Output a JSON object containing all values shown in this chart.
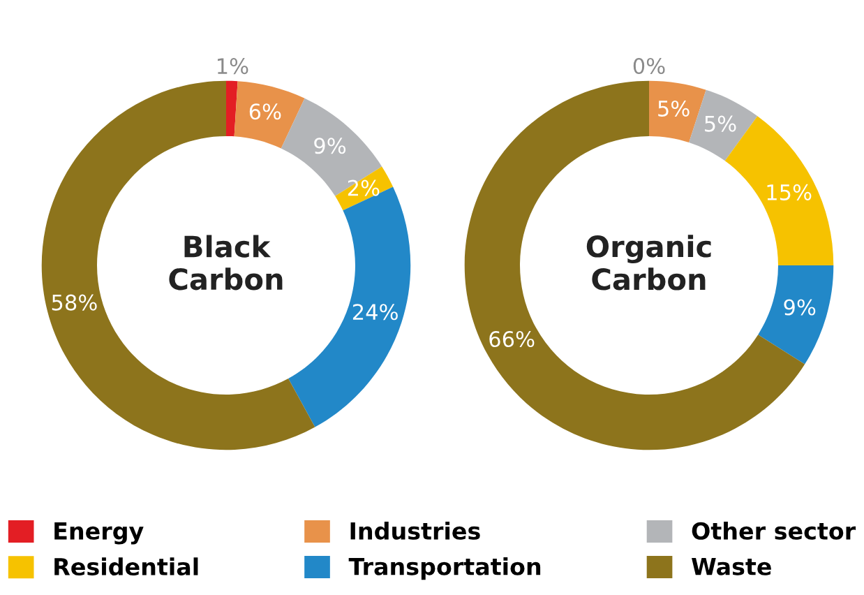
{
  "chart_data": [
    {
      "type": "donut",
      "title": "Black Carbon",
      "categories": [
        "Energy",
        "Industries",
        "Other sector",
        "Residential",
        "Transportation",
        "Waste"
      ],
      "values": [
        1,
        6,
        9,
        2,
        24,
        58
      ],
      "value_labels": [
        "1%",
        "6%",
        "9%",
        "2%",
        "24%",
        "58%"
      ],
      "colors": [
        "#e31e24",
        "#e8924a",
        "#b3b5b8",
        "#f6c200",
        "#2288c8",
        "#8d741c"
      ],
      "legend": "bottom"
    },
    {
      "type": "donut",
      "title": "Organic Carbon",
      "categories": [
        null,
        null,
        null,
        null,
        null,
        null
      ],
      "values": [
        0,
        5,
        5,
        15,
        9,
        66
      ],
      "value_labels": [
        "0%",
        "5%",
        "5%",
        "15%",
        "9%",
        "66%"
      ],
      "colors": [
        "#e31e24",
        "#e8924a",
        "#b3b5b8",
        "#f6c200",
        "#2288c8",
        "#8d741c"
      ],
      "legend": false
    }
  ]
}
